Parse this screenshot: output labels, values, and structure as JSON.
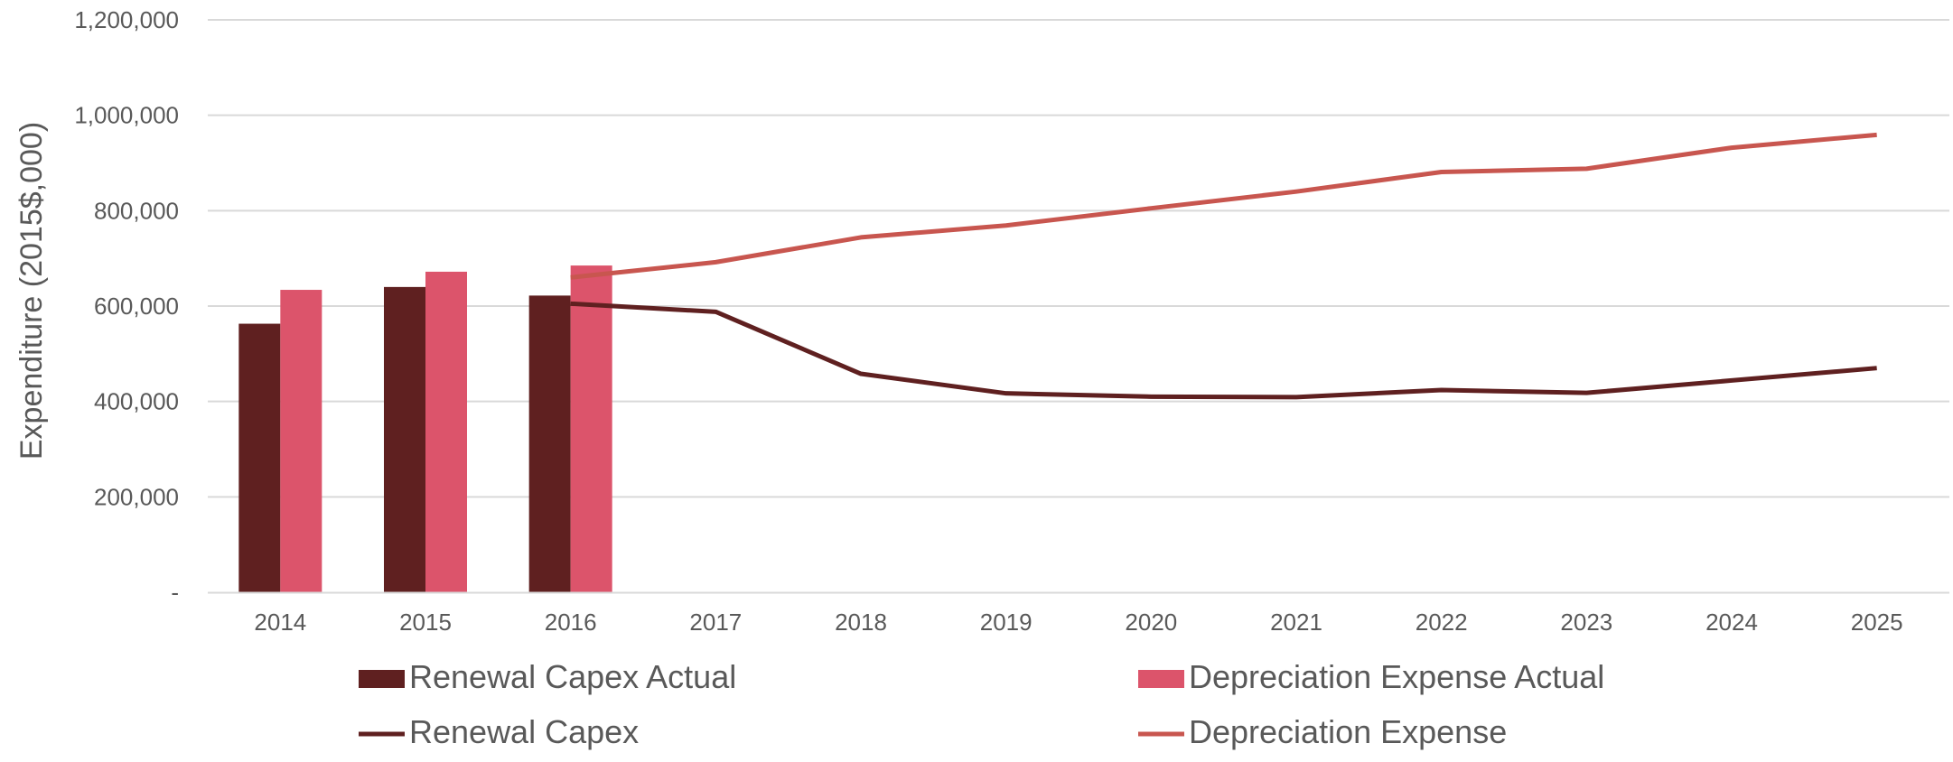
{
  "chart_data": {
    "type": "bar",
    "title": "",
    "xlabel": "",
    "ylabel": "Expenditure (2015$,000)",
    "ylim": [
      0,
      1200000
    ],
    "yticks": [
      0,
      200000,
      400000,
      600000,
      800000,
      1000000,
      1200000
    ],
    "ytick_labels": [
      "-",
      "200,000",
      "400,000",
      "600,000",
      "800,000",
      "1,000,000",
      "1,200,000"
    ],
    "categories": [
      "2014",
      "2015",
      "2016",
      "2017",
      "2018",
      "2019",
      "2020",
      "2021",
      "2022",
      "2023",
      "2024",
      "2025"
    ],
    "grid": true,
    "legend_position": "bottom",
    "series": [
      {
        "name": "Renewal Capex Actual",
        "kind": "bar",
        "color": "#5f2020",
        "values": [
          563000,
          640000,
          622000,
          null,
          null,
          null,
          null,
          null,
          null,
          null,
          null,
          null
        ]
      },
      {
        "name": "Depreciation Expense Actual",
        "kind": "bar",
        "color": "#dc546b",
        "values": [
          634000,
          672000,
          685000,
          null,
          null,
          null,
          null,
          null,
          null,
          null,
          null,
          null
        ]
      },
      {
        "name": "Renewal Capex",
        "kind": "line",
        "color": "#5f2020",
        "values": [
          null,
          null,
          605000,
          588000,
          458000,
          417000,
          410000,
          409000,
          424000,
          418000,
          444000,
          470000
        ]
      },
      {
        "name": "Depreciation Expense",
        "kind": "line",
        "color": "#c8564f",
        "values": [
          null,
          null,
          660000,
          692000,
          744000,
          769000,
          805000,
          840000,
          881000,
          888000,
          932000,
          959000
        ]
      }
    ]
  }
}
